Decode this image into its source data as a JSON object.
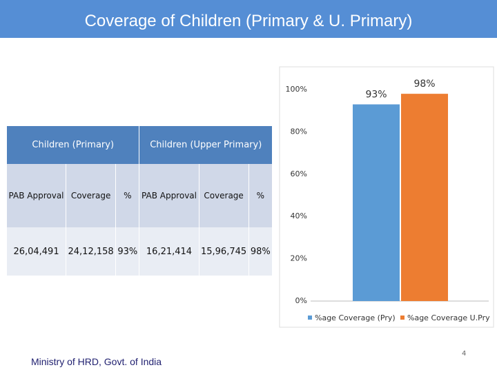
{
  "header": {
    "title": "Coverage of Children (Primary & U. Primary)"
  },
  "table": {
    "groups": [
      "Children (Primary)",
      "Children (Upper Primary)"
    ],
    "columns": [
      "PAB Approval",
      "Coverage",
      "%",
      "PAB Approval",
      "Coverage",
      "%"
    ],
    "rows": [
      [
        "26,04,491",
        "24,12,158",
        "93%",
        "16,21,414",
        "15,96,745",
        "98%"
      ]
    ]
  },
  "chart_data": {
    "type": "bar",
    "categories": [
      null
    ],
    "series": [
      {
        "name": "%age Coverage (Pry)",
        "color": "#5b9bd5",
        "values": [
          93
        ],
        "value_labels": [
          "93%"
        ]
      },
      {
        "name": "%age Coverage U.Pry",
        "color": "#ed7d31",
        "values": [
          98
        ],
        "value_labels": [
          "98%"
        ]
      }
    ],
    "ylim": [
      0,
      100
    ],
    "yticks": [
      {
        "value": 0,
        "label": "0%"
      },
      {
        "value": 20,
        "label": "20%"
      },
      {
        "value": 40,
        "label": "40%"
      },
      {
        "value": 60,
        "label": "60%"
      },
      {
        "value": 80,
        "label": "80%"
      },
      {
        "value": 100,
        "label": "100%"
      }
    ],
    "grid": false,
    "legend": "bottom"
  },
  "footer": {
    "text": "Ministry of HRD, Govt. of India",
    "page": "4"
  }
}
